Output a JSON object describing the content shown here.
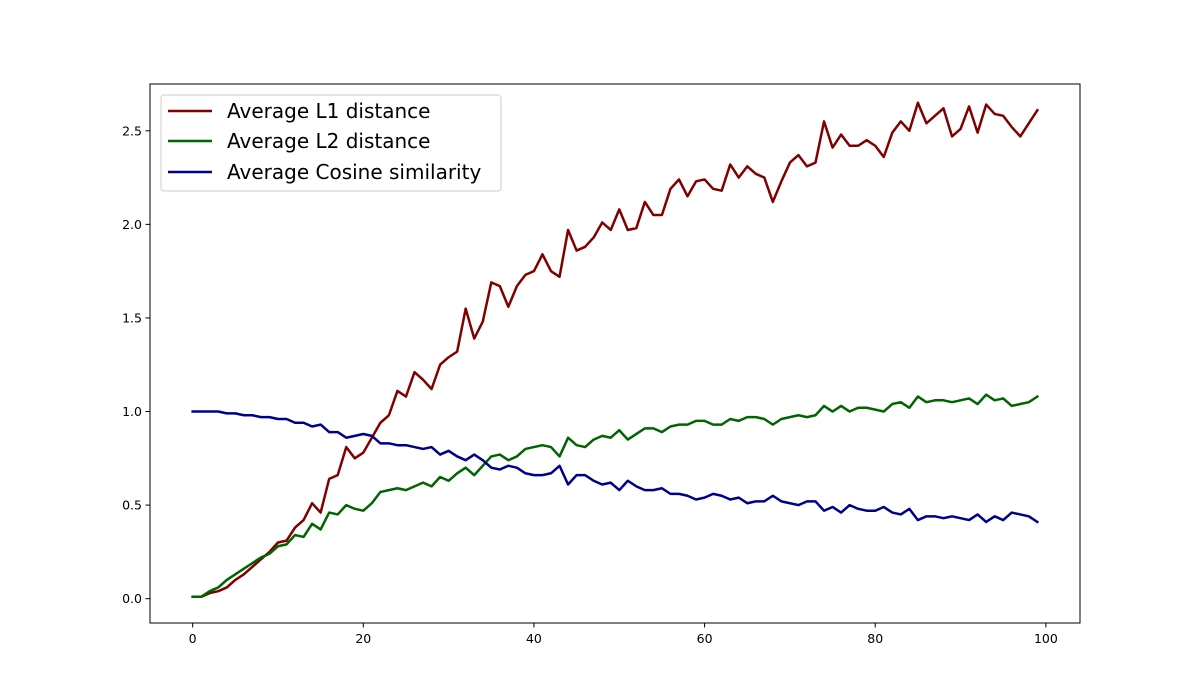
{
  "chart_data": {
    "type": "line",
    "title": "",
    "xlabel": "",
    "ylabel": "",
    "xlim": [
      -5,
      104
    ],
    "ylim": [
      -0.13,
      2.75
    ],
    "xticks": [
      0,
      20,
      40,
      60,
      80,
      100
    ],
    "yticks": [
      0.0,
      0.5,
      1.0,
      1.5,
      2.0,
      2.5
    ],
    "xtick_labels": [
      "0",
      "20",
      "40",
      "60",
      "80",
      "100"
    ],
    "ytick_labels": [
      "0.0",
      "0.5",
      "1.0",
      "1.5",
      "2.0",
      "2.5"
    ],
    "grid": false,
    "legend_position": "top-left",
    "x": [
      0,
      1,
      2,
      3,
      4,
      5,
      6,
      7,
      8,
      9,
      10,
      11,
      12,
      13,
      14,
      15,
      16,
      17,
      18,
      19,
      20,
      21,
      22,
      23,
      24,
      25,
      26,
      27,
      28,
      29,
      30,
      31,
      32,
      33,
      34,
      35,
      36,
      37,
      38,
      39,
      40,
      41,
      42,
      43,
      44,
      45,
      46,
      47,
      48,
      49,
      50,
      51,
      52,
      53,
      54,
      55,
      56,
      57,
      58,
      59,
      60,
      61,
      62,
      63,
      64,
      65,
      66,
      67,
      68,
      69,
      70,
      71,
      72,
      73,
      74,
      75,
      76,
      77,
      78,
      79,
      80,
      81,
      82,
      83,
      84,
      85,
      86,
      87,
      88,
      89,
      90,
      91,
      92,
      93,
      94,
      95,
      96,
      97,
      98,
      99
    ],
    "series": [
      {
        "name": "Average L1 distance",
        "color": "#800000",
        "values": [
          0.01,
          0.01,
          0.03,
          0.04,
          0.06,
          0.1,
          0.13,
          0.17,
          0.21,
          0.25,
          0.3,
          0.31,
          0.38,
          0.42,
          0.51,
          0.46,
          0.64,
          0.66,
          0.81,
          0.75,
          0.78,
          0.86,
          0.94,
          0.98,
          1.11,
          1.08,
          1.21,
          1.17,
          1.12,
          1.25,
          1.29,
          1.32,
          1.55,
          1.39,
          1.48,
          1.69,
          1.67,
          1.56,
          1.67,
          1.73,
          1.75,
          1.84,
          1.75,
          1.72,
          1.97,
          1.86,
          1.88,
          1.93,
          2.01,
          1.97,
          2.08,
          1.97,
          1.98,
          2.12,
          2.05,
          2.05,
          2.19,
          2.24,
          2.15,
          2.23,
          2.24,
          2.19,
          2.18,
          2.32,
          2.25,
          2.31,
          2.27,
          2.25,
          2.12,
          2.23,
          2.33,
          2.37,
          2.31,
          2.33,
          2.55,
          2.41,
          2.48,
          2.42,
          2.42,
          2.45,
          2.42,
          2.36,
          2.49,
          2.55,
          2.5,
          2.65,
          2.54,
          2.58,
          2.62,
          2.47,
          2.51,
          2.63,
          2.49,
          2.64,
          2.59,
          2.58,
          2.52,
          2.47,
          2.54,
          2.61
        ]
      },
      {
        "name": "Average L2 distance",
        "color": "#006400",
        "values": [
          0.01,
          0.01,
          0.04,
          0.06,
          0.1,
          0.13,
          0.16,
          0.19,
          0.22,
          0.24,
          0.28,
          0.29,
          0.34,
          0.33,
          0.4,
          0.37,
          0.46,
          0.45,
          0.5,
          0.48,
          0.47,
          0.51,
          0.57,
          0.58,
          0.59,
          0.58,
          0.6,
          0.62,
          0.6,
          0.65,
          0.63,
          0.67,
          0.7,
          0.66,
          0.71,
          0.76,
          0.77,
          0.74,
          0.76,
          0.8,
          0.81,
          0.82,
          0.81,
          0.76,
          0.86,
          0.82,
          0.81,
          0.85,
          0.87,
          0.86,
          0.9,
          0.85,
          0.88,
          0.91,
          0.91,
          0.89,
          0.92,
          0.93,
          0.93,
          0.95,
          0.95,
          0.93,
          0.93,
          0.96,
          0.95,
          0.97,
          0.97,
          0.96,
          0.93,
          0.96,
          0.97,
          0.98,
          0.97,
          0.98,
          1.03,
          1.0,
          1.03,
          1.0,
          1.02,
          1.02,
          1.01,
          1.0,
          1.04,
          1.05,
          1.02,
          1.08,
          1.05,
          1.06,
          1.06,
          1.05,
          1.06,
          1.07,
          1.04,
          1.09,
          1.06,
          1.07,
          1.03,
          1.04,
          1.05,
          1.08
        ]
      },
      {
        "name": "Average Cosine similarity",
        "color": "#00008b",
        "values": [
          1.0,
          1.0,
          1.0,
          1.0,
          0.99,
          0.99,
          0.98,
          0.98,
          0.97,
          0.97,
          0.96,
          0.96,
          0.94,
          0.94,
          0.92,
          0.93,
          0.89,
          0.89,
          0.86,
          0.87,
          0.88,
          0.87,
          0.83,
          0.83,
          0.82,
          0.82,
          0.81,
          0.8,
          0.81,
          0.77,
          0.79,
          0.76,
          0.74,
          0.77,
          0.74,
          0.7,
          0.69,
          0.71,
          0.7,
          0.67,
          0.66,
          0.66,
          0.67,
          0.71,
          0.61,
          0.66,
          0.66,
          0.63,
          0.61,
          0.62,
          0.58,
          0.63,
          0.6,
          0.58,
          0.58,
          0.59,
          0.56,
          0.56,
          0.55,
          0.53,
          0.54,
          0.56,
          0.55,
          0.53,
          0.54,
          0.51,
          0.52,
          0.52,
          0.55,
          0.52,
          0.51,
          0.5,
          0.52,
          0.52,
          0.47,
          0.49,
          0.46,
          0.5,
          0.48,
          0.47,
          0.47,
          0.49,
          0.46,
          0.45,
          0.48,
          0.42,
          0.44,
          0.44,
          0.43,
          0.44,
          0.43,
          0.42,
          0.45,
          0.41,
          0.44,
          0.42,
          0.46,
          0.45,
          0.44,
          0.41
        ]
      }
    ]
  }
}
